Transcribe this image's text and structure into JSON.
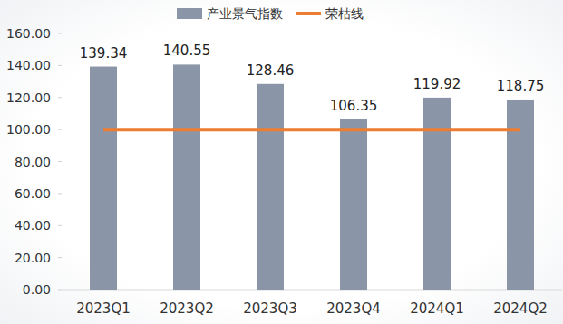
{
  "chart_data": {
    "type": "bar",
    "categories": [
      "2023Q1",
      "2023Q2",
      "2023Q3",
      "2023Q4",
      "2024Q1",
      "2024Q2"
    ],
    "series": [
      {
        "name": "产业景气指数",
        "type": "bar",
        "color": "#8a95a8",
        "values": [
          139.34,
          140.55,
          128.46,
          106.35,
          119.92,
          118.75
        ]
      },
      {
        "name": "荣枯线",
        "type": "line",
        "color": "#ed7d31",
        "values": [
          100,
          100,
          100,
          100,
          100,
          100
        ]
      }
    ],
    "ylim": [
      0,
      160
    ],
    "yticks": [
      {
        "value": 0,
        "label": "0.00"
      },
      {
        "value": 20,
        "label": "20.00"
      },
      {
        "value": 40,
        "label": "40.00"
      },
      {
        "value": 60,
        "label": "60.00"
      },
      {
        "value": 80,
        "label": "80.00"
      },
      {
        "value": 100,
        "label": "100.00"
      },
      {
        "value": 120,
        "label": "120.00"
      },
      {
        "value": 140,
        "label": "140.00"
      },
      {
        "value": 160,
        "label": "160.00"
      }
    ],
    "grid": false,
    "legend": "top",
    "data_labels": true
  }
}
